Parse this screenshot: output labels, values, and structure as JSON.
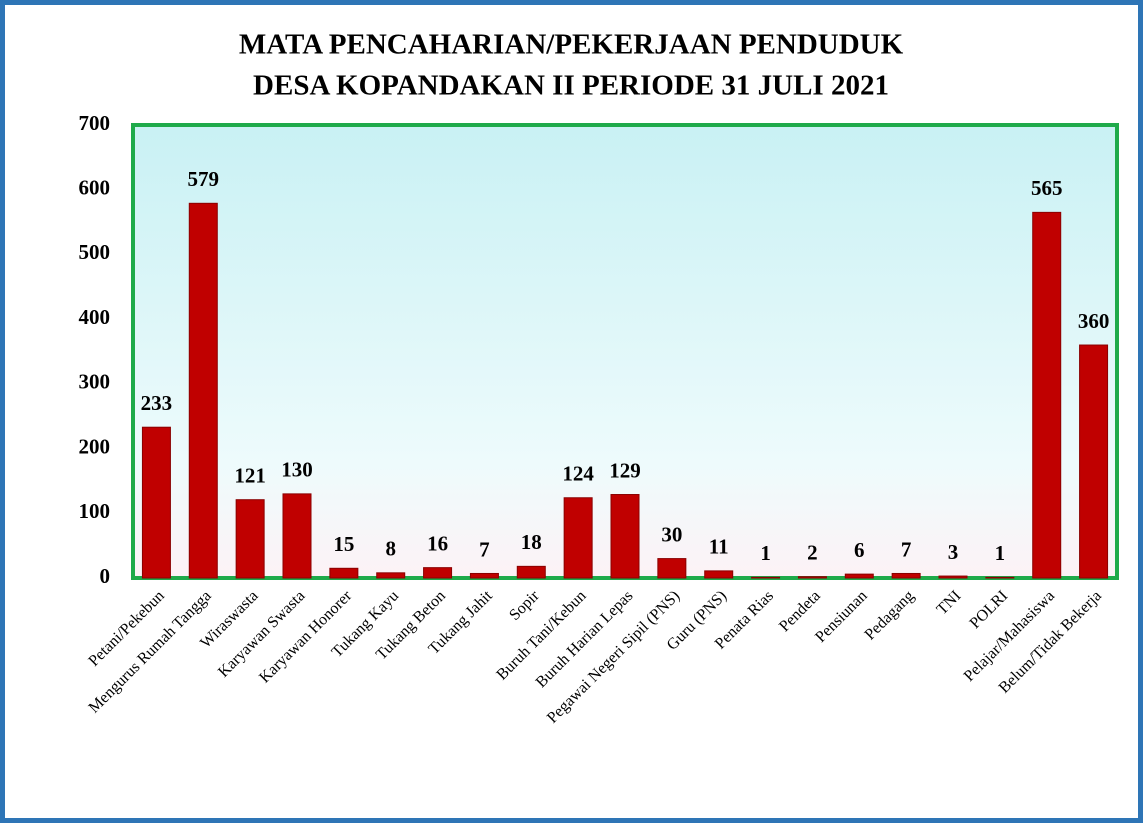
{
  "chart_data": {
    "type": "bar",
    "title": [
      "MATA PENCAHARIAN/PEKERJAAN PENDUDUK",
      "DESA KOPANDAKAN II PERIODE 31 JULI 2021"
    ],
    "categories": [
      "Petani/Pekebun",
      "Mengurus Rumah Tangga",
      "Wiraswasta",
      "Karyawan Swasta",
      "Karyawan Honorer",
      "Tukang Kayu",
      "Tukang Beton",
      "Tukang Jahit",
      "Sopir",
      "Buruh Tani/Kebun",
      "Buruh Harian Lepas",
      "Pegawai Negeri Sipil (PNS)",
      "Guru (PNS)",
      "Penata Rias",
      "Pendeta",
      "Pensiunan",
      "Pedagang",
      "TNI",
      "POLRI",
      "Pelajar/Mahasiswa",
      "Belum/Tidak Bekerja"
    ],
    "values": [
      233,
      579,
      121,
      130,
      15,
      8,
      16,
      7,
      18,
      124,
      129,
      30,
      11,
      1,
      2,
      6,
      7,
      3,
      1,
      565,
      360
    ],
    "color": "#c00000",
    "ylim": [
      0,
      700
    ],
    "yticks": [
      0,
      100,
      200,
      300,
      400,
      500,
      600,
      700
    ],
    "grid": false
  }
}
